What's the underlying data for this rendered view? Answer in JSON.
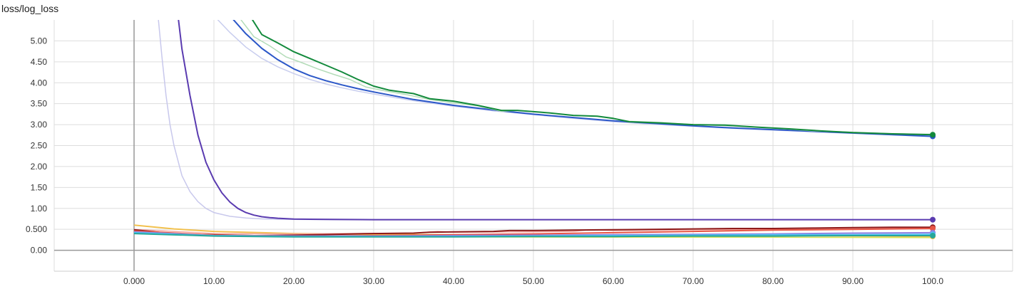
{
  "chart_title": "loss/log_loss",
  "chart_data": {
    "type": "line",
    "title": "loss/log_loss",
    "xlabel": "",
    "ylabel": "",
    "xlim": [
      -10,
      110
    ],
    "ylim": [
      -0.5,
      5.5
    ],
    "grid": true,
    "x_ticks": [
      0,
      10,
      20,
      30,
      40,
      50,
      60,
      70,
      80,
      90,
      100
    ],
    "x_tick_labels": [
      "0.000",
      "10.00",
      "20.00",
      "30.00",
      "40.00",
      "50.00",
      "60.00",
      "70.00",
      "80.00",
      "90.00",
      "100.0"
    ],
    "y_ticks": [
      0,
      0.5,
      1,
      1.5,
      2,
      2.5,
      3,
      3.5,
      4,
      4.5,
      5
    ],
    "y_tick_labels": [
      "0.00",
      "0.500",
      "1.00",
      "1.50",
      "2.00",
      "2.50",
      "3.00",
      "3.50",
      "4.00",
      "4.50",
      "5.00"
    ],
    "series": [
      {
        "color": "#c8c8ec",
        "width": 1.5,
        "points": [
          [
            3,
            5.6
          ],
          [
            3.5,
            4.6
          ],
          [
            4,
            3.7
          ],
          [
            4.5,
            3.0
          ],
          [
            5,
            2.5
          ],
          [
            6,
            1.78
          ],
          [
            7,
            1.4
          ],
          [
            8,
            1.16
          ],
          [
            9,
            1.0
          ],
          [
            10,
            0.9
          ],
          [
            12,
            0.81
          ],
          [
            14,
            0.77
          ],
          [
            16,
            0.75
          ],
          [
            18,
            0.74
          ],
          [
            20,
            0.735
          ],
          [
            25,
            0.73
          ],
          [
            30,
            0.73
          ],
          [
            100,
            0.73
          ]
        ]
      },
      {
        "color": "#5a3bb0",
        "width": 2,
        "points": [
          [
            5.5,
            5.6
          ],
          [
            6,
            4.8
          ],
          [
            7,
            3.7
          ],
          [
            8,
            2.75
          ],
          [
            9,
            2.1
          ],
          [
            10,
            1.68
          ],
          [
            11,
            1.37
          ],
          [
            12,
            1.15
          ],
          [
            13,
            1.0
          ],
          [
            14,
            0.9
          ],
          [
            15,
            0.84
          ],
          [
            16,
            0.8
          ],
          [
            17,
            0.78
          ],
          [
            18,
            0.765
          ],
          [
            20,
            0.745
          ],
          [
            22,
            0.74
          ],
          [
            25,
            0.735
          ],
          [
            30,
            0.73
          ],
          [
            100,
            0.73
          ]
        ]
      },
      {
        "color": "#c8cdee",
        "width": 1.5,
        "points": [
          [
            10,
            5.6
          ],
          [
            12,
            5.2
          ],
          [
            14,
            4.85
          ],
          [
            16,
            4.58
          ],
          [
            18,
            4.38
          ],
          [
            20,
            4.22
          ],
          [
            22,
            4.08
          ],
          [
            24,
            3.97
          ],
          [
            26,
            3.88
          ],
          [
            28,
            3.8
          ],
          [
            30,
            3.73
          ],
          [
            35,
            3.57
          ],
          [
            40,
            3.44
          ],
          [
            45,
            3.33
          ],
          [
            50,
            3.24
          ],
          [
            55,
            3.15
          ],
          [
            60,
            3.07
          ],
          [
            65,
            3.01
          ],
          [
            70,
            2.96
          ],
          [
            75,
            2.91
          ],
          [
            80,
            2.87
          ],
          [
            85,
            2.83
          ],
          [
            90,
            2.79
          ],
          [
            95,
            2.76
          ],
          [
            100,
            2.73
          ]
        ]
      },
      {
        "color": "#2b57c8",
        "width": 2,
        "points": [
          [
            12,
            5.6
          ],
          [
            14,
            5.17
          ],
          [
            16,
            4.82
          ],
          [
            18,
            4.55
          ],
          [
            20,
            4.33
          ],
          [
            22,
            4.17
          ],
          [
            24,
            4.05
          ],
          [
            26,
            3.95
          ],
          [
            28,
            3.86
          ],
          [
            30,
            3.78
          ],
          [
            35,
            3.6
          ],
          [
            40,
            3.46
          ],
          [
            45,
            3.35
          ],
          [
            50,
            3.25
          ],
          [
            55,
            3.17
          ],
          [
            60,
            3.09
          ],
          [
            65,
            3.03
          ],
          [
            70,
            2.97
          ],
          [
            75,
            2.92
          ],
          [
            80,
            2.88
          ],
          [
            85,
            2.84
          ],
          [
            90,
            2.8
          ],
          [
            95,
            2.76
          ],
          [
            100,
            2.72
          ]
        ]
      },
      {
        "color": "#b3dcb8",
        "width": 1.5,
        "points": [
          [
            13,
            5.6
          ],
          [
            15,
            5.1
          ],
          [
            17,
            4.88
          ],
          [
            19,
            4.62
          ],
          [
            21,
            4.48
          ],
          [
            23,
            4.33
          ],
          [
            25,
            4.2
          ],
          [
            27,
            4.08
          ],
          [
            29,
            3.9
          ],
          [
            31,
            3.82
          ],
          [
            34,
            3.72
          ],
          [
            37,
            3.6
          ],
          [
            40,
            3.52
          ],
          [
            43,
            3.45
          ],
          [
            46,
            3.32
          ],
          [
            48,
            3.34
          ],
          [
            52,
            3.28
          ],
          [
            55,
            3.22
          ],
          [
            58,
            3.2
          ],
          [
            62,
            3.08
          ],
          [
            66,
            3.05
          ],
          [
            70,
            3.0
          ],
          [
            75,
            2.97
          ],
          [
            80,
            2.92
          ],
          [
            85,
            2.85
          ],
          [
            90,
            2.82
          ],
          [
            95,
            2.78
          ],
          [
            100,
            2.77
          ]
        ]
      },
      {
        "color": "#138a3c",
        "width": 2,
        "points": [
          [
            14.5,
            5.6
          ],
          [
            16,
            5.15
          ],
          [
            18,
            4.95
          ],
          [
            20,
            4.74
          ],
          [
            22,
            4.58
          ],
          [
            24,
            4.42
          ],
          [
            26,
            4.26
          ],
          [
            28,
            4.08
          ],
          [
            30,
            3.92
          ],
          [
            32,
            3.82
          ],
          [
            35,
            3.74
          ],
          [
            37,
            3.62
          ],
          [
            40,
            3.56
          ],
          [
            43,
            3.46
          ],
          [
            46,
            3.34
          ],
          [
            48,
            3.34
          ],
          [
            52,
            3.28
          ],
          [
            55,
            3.22
          ],
          [
            58,
            3.2
          ],
          [
            60,
            3.15
          ],
          [
            62,
            3.07
          ],
          [
            66,
            3.04
          ],
          [
            70,
            3.0
          ],
          [
            74,
            2.99
          ],
          [
            78,
            2.94
          ],
          [
            82,
            2.9
          ],
          [
            86,
            2.85
          ],
          [
            90,
            2.81
          ],
          [
            95,
            2.78
          ],
          [
            100,
            2.76
          ]
        ]
      },
      {
        "color": "#f2c14e",
        "width": 2,
        "points": [
          [
            0,
            0.6
          ],
          [
            5,
            0.51
          ],
          [
            10,
            0.45
          ],
          [
            20,
            0.4
          ],
          [
            30,
            0.38
          ],
          [
            40,
            0.37
          ],
          [
            50,
            0.36
          ],
          [
            60,
            0.36
          ],
          [
            70,
            0.35
          ],
          [
            80,
            0.35
          ],
          [
            90,
            0.34
          ],
          [
            100,
            0.33
          ]
        ]
      },
      {
        "color": "#d4e157",
        "width": 1.5,
        "points": [
          [
            0,
            0.42
          ],
          [
            10,
            0.35
          ],
          [
            20,
            0.33
          ],
          [
            40,
            0.32
          ],
          [
            60,
            0.31
          ],
          [
            80,
            0.31
          ],
          [
            100,
            0.3
          ]
        ]
      },
      {
        "color": "#f4a6a0",
        "width": 1.5,
        "points": [
          [
            0,
            0.5
          ],
          [
            10,
            0.4
          ],
          [
            20,
            0.39
          ],
          [
            25,
            0.4
          ],
          [
            35,
            0.41
          ],
          [
            38,
            0.45
          ],
          [
            40,
            0.43
          ],
          [
            50,
            0.44
          ],
          [
            55,
            0.45
          ],
          [
            57,
            0.49
          ],
          [
            60,
            0.47
          ],
          [
            70,
            0.49
          ],
          [
            80,
            0.5
          ],
          [
            90,
            0.52
          ],
          [
            100,
            0.53
          ]
        ]
      },
      {
        "color": "#8e1b1b",
        "width": 2,
        "points": [
          [
            0,
            0.49
          ],
          [
            5,
            0.39
          ],
          [
            10,
            0.37
          ],
          [
            15,
            0.35
          ],
          [
            20,
            0.36
          ],
          [
            25,
            0.38
          ],
          [
            30,
            0.4
          ],
          [
            35,
            0.41
          ],
          [
            37,
            0.43
          ],
          [
            40,
            0.44
          ],
          [
            45,
            0.45
          ],
          [
            47,
            0.47
          ],
          [
            50,
            0.47
          ],
          [
            55,
            0.48
          ],
          [
            60,
            0.49
          ],
          [
            65,
            0.5
          ],
          [
            70,
            0.51
          ],
          [
            75,
            0.52
          ],
          [
            80,
            0.52
          ],
          [
            85,
            0.53
          ],
          [
            90,
            0.54
          ],
          [
            95,
            0.55
          ],
          [
            100,
            0.55
          ]
        ]
      },
      {
        "color": "#e85545",
        "width": 2,
        "points": [
          [
            0,
            0.46
          ],
          [
            10,
            0.36
          ],
          [
            20,
            0.34
          ],
          [
            30,
            0.35
          ],
          [
            40,
            0.37
          ],
          [
            50,
            0.39
          ],
          [
            60,
            0.42
          ],
          [
            70,
            0.45
          ],
          [
            80,
            0.48
          ],
          [
            90,
            0.5
          ],
          [
            100,
            0.52
          ]
        ]
      },
      {
        "color": "#8f7fe0",
        "width": 2,
        "points": [
          [
            0,
            0.44
          ],
          [
            10,
            0.35
          ],
          [
            20,
            0.34
          ],
          [
            30,
            0.34
          ],
          [
            40,
            0.35
          ],
          [
            50,
            0.36
          ],
          [
            60,
            0.37
          ],
          [
            70,
            0.38
          ],
          [
            80,
            0.39
          ],
          [
            90,
            0.41
          ],
          [
            100,
            0.42
          ]
        ]
      },
      {
        "color": "#4fc3f7",
        "width": 2,
        "points": [
          [
            0,
            0.42
          ],
          [
            10,
            0.35
          ],
          [
            20,
            0.33
          ],
          [
            30,
            0.33
          ],
          [
            40,
            0.33
          ],
          [
            50,
            0.34
          ],
          [
            60,
            0.35
          ],
          [
            70,
            0.36
          ],
          [
            80,
            0.37
          ],
          [
            90,
            0.37
          ],
          [
            100,
            0.38
          ]
        ]
      },
      {
        "color": "#26a69a",
        "width": 2,
        "points": [
          [
            0,
            0.4
          ],
          [
            10,
            0.34
          ],
          [
            20,
            0.32
          ],
          [
            30,
            0.32
          ],
          [
            40,
            0.32
          ],
          [
            50,
            0.33
          ],
          [
            60,
            0.33
          ],
          [
            70,
            0.34
          ],
          [
            80,
            0.34
          ],
          [
            90,
            0.35
          ],
          [
            100,
            0.35
          ]
        ]
      }
    ]
  }
}
